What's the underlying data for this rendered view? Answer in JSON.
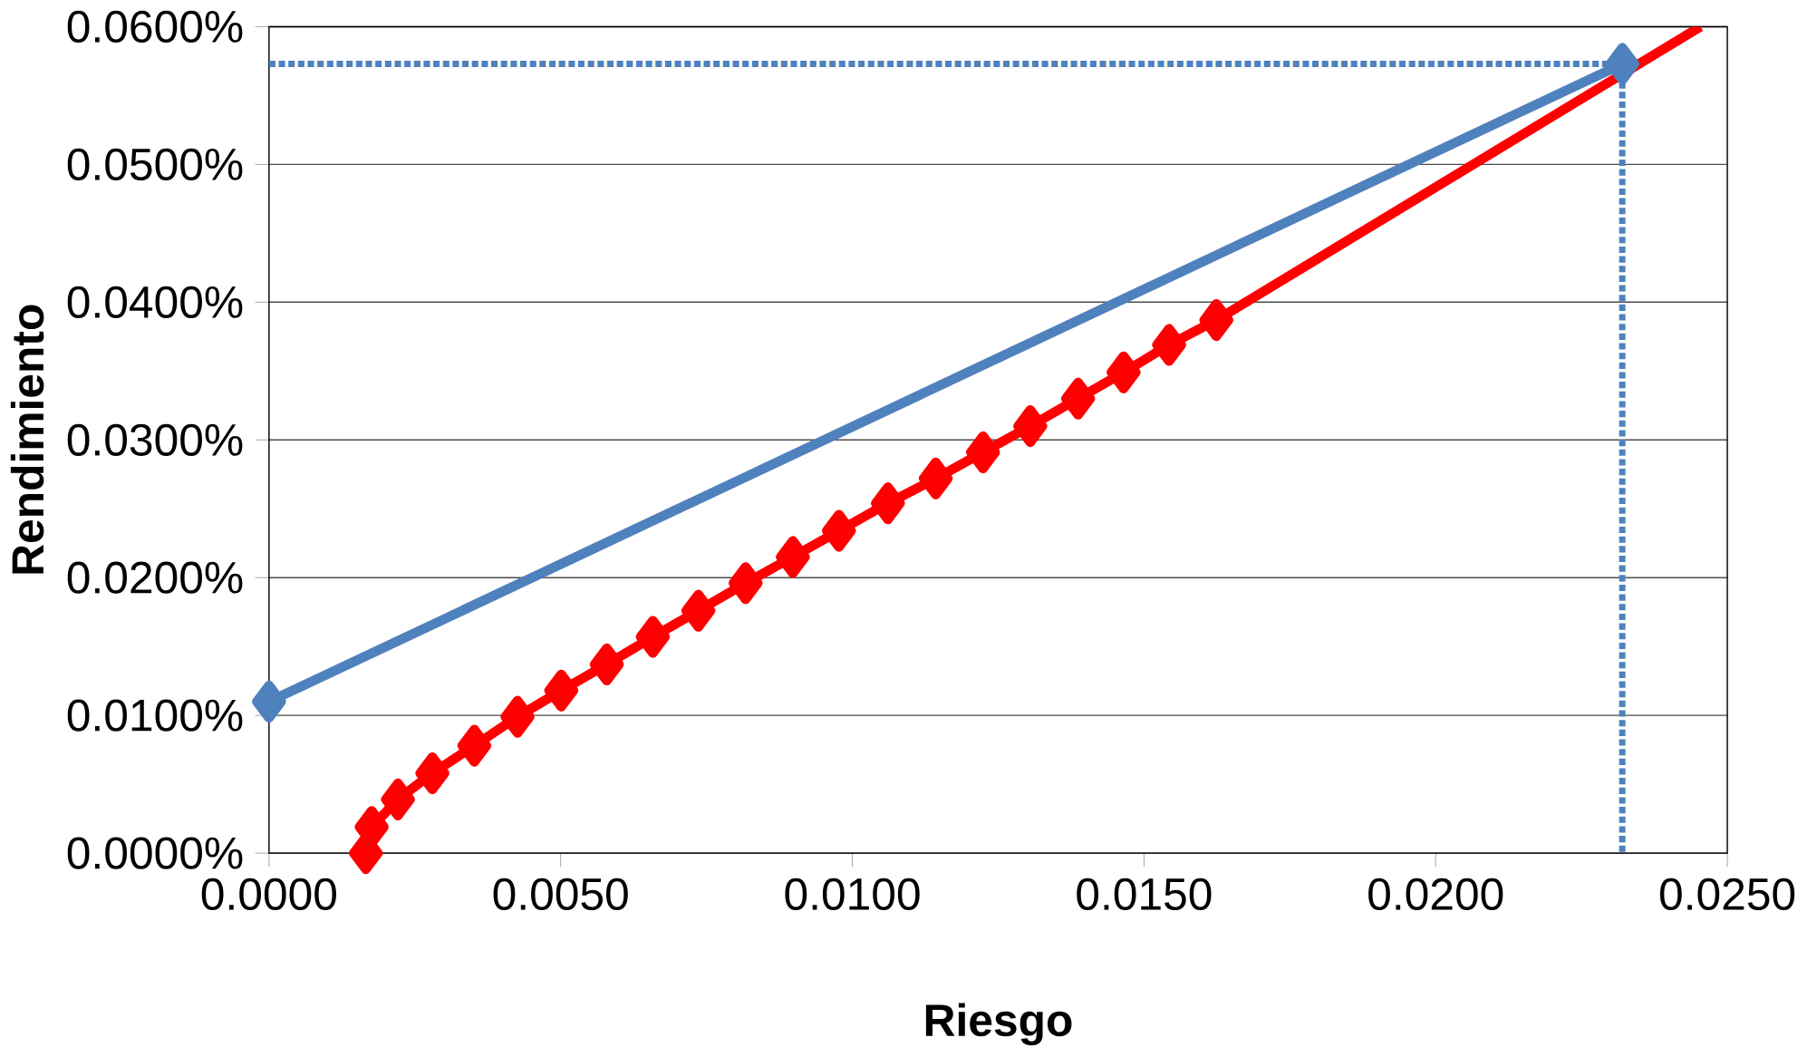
{
  "chart_data": {
    "type": "line",
    "xlabel": "Riesgo",
    "ylabel": "Rendimiento",
    "xlim": [
      0,
      0.025
    ],
    "ylim": [
      0,
      0.06
    ],
    "xticks": [
      {
        "value": 0,
        "label": "0.0000"
      },
      {
        "value": 0.005,
        "label": "0.0050"
      },
      {
        "value": 0.01,
        "label": "0.0100"
      },
      {
        "value": 0.015,
        "label": "0.0150"
      },
      {
        "value": 0.02,
        "label": "0.0200"
      },
      {
        "value": 0.025,
        "label": "0.0250"
      }
    ],
    "yticks": [
      {
        "value": 0,
        "label": "0.0000%"
      },
      {
        "value": 0.01,
        "label": "0.0100%"
      },
      {
        "value": 0.02,
        "label": "0.0200%"
      },
      {
        "value": 0.03,
        "label": "0.0300%"
      },
      {
        "value": 0.04,
        "label": "0.0400%"
      },
      {
        "value": 0.05,
        "label": "0.0500%"
      },
      {
        "value": 0.06,
        "label": "0.0600%"
      }
    ],
    "grid": "y",
    "marker": "diamond",
    "line_style": "solid",
    "series": [
      {
        "color": "#ff0000",
        "x": [
          0.00166,
          0.00176,
          0.00221,
          0.0028,
          0.00352,
          0.00426,
          0.00501,
          0.00579,
          0.00658,
          0.00736,
          0.00817,
          0.00898,
          0.00977,
          0.01061,
          0.01143,
          0.01224,
          0.01305,
          0.01387,
          0.01465,
          0.01543,
          0.01624
        ],
        "values": [
          0,
          0.0019,
          0.0039,
          0.0058,
          0.0078,
          0.0099,
          0.0118,
          0.0137,
          0.0157,
          0.0176,
          0.0196,
          0.0215,
          0.0234,
          0.0254,
          0.0272,
          0.0291,
          0.031,
          0.033,
          0.0349,
          0.0369,
          0.0387
        ]
      },
      {
        "color": "#ff0000",
        "marker": "none",
        "x": [
          0.01624,
          0.02454
        ],
        "values": [
          0.0387,
          0.06
        ]
      },
      {
        "color": "#4f81bd",
        "x": [
          0,
          0.0232
        ],
        "values": [
          0.011,
          0.0573
        ]
      },
      {
        "color": "#4f81bd",
        "marker": "none",
        "line_style": "dotted",
        "x": [
          0,
          0.0232,
          0.0232
        ],
        "values": [
          0.0573,
          0.0573,
          0
        ]
      }
    ]
  }
}
